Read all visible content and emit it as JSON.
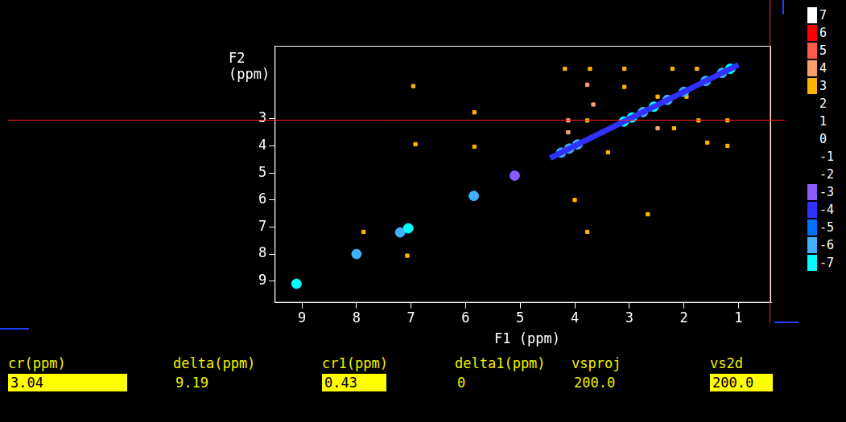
{
  "chart_data": {
    "type": "scatter",
    "x_label": "F1 (ppm)",
    "y_label": "F2 (ppm)",
    "xlim": [
      0.4,
      9.5
    ],
    "ylim": [
      0.3,
      9.8
    ],
    "xticks": [
      9,
      8,
      7,
      6,
      5,
      4,
      3,
      2,
      1
    ],
    "yticks": [
      3,
      4,
      5,
      6,
      7,
      8,
      9
    ],
    "grid": false,
    "colorbar": {
      "ticks": [
        7,
        6,
        5,
        4,
        3,
        2,
        1,
        0,
        -1,
        -2,
        -3,
        -4,
        -5,
        -6,
        -7
      ],
      "colors": [
        "#ffffff",
        "#ff0000",
        "#ff5a4a",
        "#ff9f70",
        "#ffb400",
        "#000000",
        "#000000",
        "#000000",
        "#000000",
        "#000000",
        "#8a5cff",
        "#3030ff",
        "#0070ff",
        "#40b0ff",
        "#00ffff"
      ]
    },
    "series": [
      {
        "type": "line",
        "values": [
          [
            4.45,
            4.45,
            -4
          ],
          [
            1.0,
            1.0,
            -4
          ]
        ]
      },
      {
        "type": "scatter",
        "marker": "circle",
        "values": [
          [
            9.1,
            9.1,
            -7
          ],
          [
            8.0,
            8.0,
            -6
          ],
          [
            7.2,
            7.2,
            -6
          ],
          [
            7.05,
            7.05,
            -7
          ],
          [
            5.85,
            5.85,
            -6
          ],
          [
            5.1,
            5.1,
            -3
          ],
          [
            4.25,
            4.25,
            -6
          ],
          [
            4.1,
            4.1,
            -6
          ],
          [
            3.95,
            3.95,
            -6
          ],
          [
            3.1,
            3.1,
            -7
          ],
          [
            2.95,
            2.95,
            -7
          ],
          [
            2.75,
            2.75,
            -6
          ],
          [
            2.55,
            2.55,
            -7
          ],
          [
            2.3,
            2.3,
            -6
          ],
          [
            2.0,
            2.0,
            -6
          ],
          [
            1.6,
            1.6,
            -6
          ],
          [
            1.3,
            1.3,
            -6
          ],
          [
            1.15,
            1.15,
            -7
          ]
        ]
      },
      {
        "type": "scatter",
        "marker": "square",
        "values": [
          [
            4.18,
            1.15,
            3
          ],
          [
            3.72,
            1.15,
            3
          ],
          [
            3.09,
            1.15,
            3
          ],
          [
            2.21,
            1.15,
            3
          ],
          [
            1.76,
            1.15,
            3
          ],
          [
            3.77,
            1.74,
            4
          ],
          [
            3.09,
            1.82,
            3
          ],
          [
            3.66,
            2.47,
            4
          ],
          [
            2.48,
            2.18,
            3
          ],
          [
            1.95,
            2.18,
            3
          ],
          [
            2.48,
            3.35,
            4
          ],
          [
            2.18,
            3.35,
            3
          ],
          [
            1.73,
            3.06,
            3
          ],
          [
            1.2,
            3.06,
            3
          ],
          [
            1.57,
            3.88,
            3
          ],
          [
            1.2,
            4.0,
            3
          ],
          [
            3.39,
            4.24,
            3
          ],
          [
            4.12,
            3.06,
            4
          ],
          [
            3.77,
            3.06,
            3
          ],
          [
            4.12,
            3.5,
            4
          ],
          [
            4.0,
            6.0,
            3
          ],
          [
            2.66,
            6.53,
            3
          ],
          [
            3.77,
            7.18,
            3
          ],
          [
            5.84,
            2.76,
            3
          ],
          [
            5.84,
            4.03,
            3
          ],
          [
            6.96,
            1.79,
            3
          ],
          [
            6.92,
            3.94,
            3
          ],
          [
            7.87,
            7.18,
            3
          ],
          [
            7.07,
            8.06,
            3
          ]
        ]
      }
    ]
  },
  "parameters": [
    {
      "label": "cr(ppm)",
      "value": "3.04",
      "highlighted": true
    },
    {
      "label": "delta(ppm)",
      "value": "9.19",
      "highlighted": false
    },
    {
      "label": "cr1(ppm)",
      "value": "0.43",
      "highlighted": true
    },
    {
      "label": "delta1(ppm)",
      "value": "0",
      "highlighted": false
    },
    {
      "label": "vsproj",
      "value": "200.0",
      "highlighted": false
    },
    {
      "label": "vs2d",
      "value": "200.0",
      "highlighted": true
    }
  ]
}
